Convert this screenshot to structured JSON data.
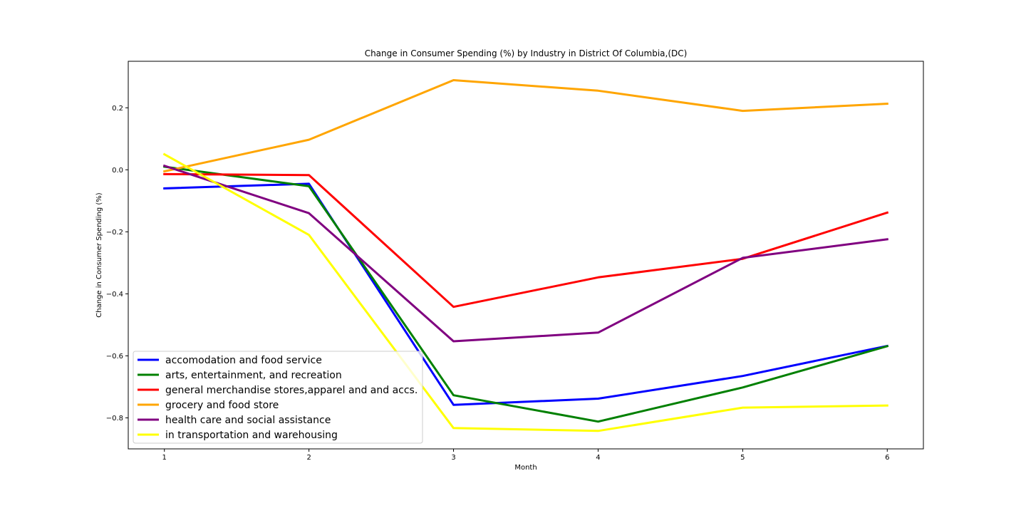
{
  "chart_data": {
    "type": "line",
    "title": "Change in Consumer Spending (%) by Industry in District Of Columbia,(DC)",
    "xlabel": "Month",
    "ylabel": "Change in Consumer Spending (%)",
    "x": [
      1,
      2,
      3,
      4,
      5,
      6
    ],
    "x_tick_labels": [
      "1",
      "2",
      "3",
      "4",
      "5",
      "6"
    ],
    "xlim": [
      0.75,
      6.25
    ],
    "y_ticks": [
      0.2,
      0.0,
      -0.2,
      -0.4,
      -0.6,
      -0.8
    ],
    "y_tick_labels": [
      "0.2",
      "0.0",
      "−0.2",
      "−0.4",
      "−0.6",
      "−0.8"
    ],
    "ylim": [
      -0.9,
      0.35
    ],
    "grid": false,
    "legend_position": "lower-left",
    "series": [
      {
        "name": "accomodation and food service",
        "color": "#0000ff",
        "values": [
          -0.06,
          -0.045,
          -0.758,
          -0.738,
          -0.665,
          -0.568
        ]
      },
      {
        "name": "arts, entertainment, and recreation",
        "color": "#008000",
        "values": [
          0.01,
          -0.053,
          -0.727,
          -0.812,
          -0.702,
          -0.569
        ]
      },
      {
        "name": "general merchandise stores,apparel and and accs.",
        "color": "#ff0000",
        "values": [
          -0.014,
          -0.017,
          -0.442,
          -0.347,
          -0.287,
          -0.138
        ]
      },
      {
        "name": "grocery and food store",
        "color": "#ffa500",
        "values": [
          -0.005,
          0.097,
          0.289,
          0.255,
          0.19,
          0.213
        ]
      },
      {
        "name": "health care and social assistance",
        "color": "#800080",
        "values": [
          0.013,
          -0.14,
          -0.553,
          -0.525,
          -0.284,
          -0.224
        ]
      },
      {
        "name": "in transportation and warehousing",
        "color": "#ffff00",
        "values": [
          0.05,
          -0.21,
          -0.833,
          -0.842,
          -0.767,
          -0.76
        ]
      }
    ]
  }
}
